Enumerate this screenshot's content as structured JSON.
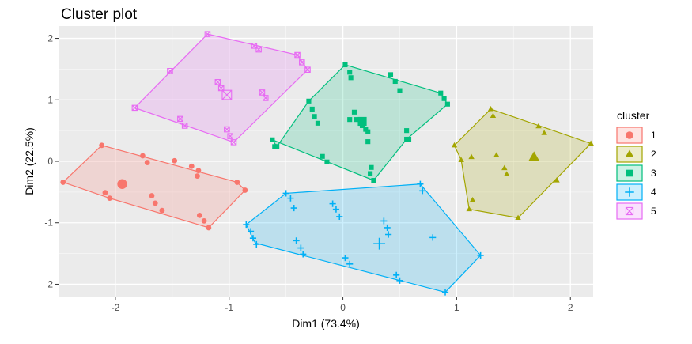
{
  "chart_data": {
    "type": "scatter",
    "title": "Cluster plot",
    "xlabel": "Dim1 (73.4%)",
    "ylabel": "Dim2 (22.5%)",
    "xlim": [
      -2.5,
      2.2
    ],
    "ylim": [
      -2.2,
      2.2
    ],
    "x_ticks": [
      -2,
      -1,
      0,
      1,
      2
    ],
    "x_tick_labels": [
      "-2",
      "-1",
      "0",
      "1",
      "2"
    ],
    "y_ticks": [
      -2,
      -1,
      0,
      1,
      2
    ],
    "y_tick_labels": [
      "-2",
      "-1",
      "0",
      "1",
      "2"
    ],
    "grid": true,
    "background": "#ebebeb",
    "legend": {
      "title": "cluster",
      "position": "right"
    },
    "series": [
      {
        "name": "1",
        "color": "#F8766D",
        "shape": "circle",
        "hull": [
          [
            -2.46,
            -0.34
          ],
          [
            -2.12,
            0.26
          ],
          [
            -0.93,
            -0.34
          ],
          [
            -0.86,
            -0.47
          ],
          [
            -1.18,
            -1.08
          ],
          [
            -2.05,
            -0.6
          ]
        ],
        "center": [
          -1.94,
          -0.37
        ],
        "points": [
          [
            -2.46,
            -0.34
          ],
          [
            -2.12,
            0.26
          ],
          [
            -1.76,
            0.09
          ],
          [
            -1.72,
            -0.02
          ],
          [
            -1.48,
            0.01
          ],
          [
            -1.33,
            -0.08
          ],
          [
            -1.27,
            -0.15
          ],
          [
            -1.28,
            -0.24
          ],
          [
            -0.93,
            -0.34
          ],
          [
            -0.86,
            -0.47
          ],
          [
            -1.18,
            -1.08
          ],
          [
            -1.22,
            -0.97
          ],
          [
            -1.26,
            -0.88
          ],
          [
            -1.59,
            -0.8
          ],
          [
            -1.65,
            -0.68
          ],
          [
            -1.68,
            -0.56
          ],
          [
            -2.05,
            -0.6
          ],
          [
            -2.09,
            -0.51
          ]
        ]
      },
      {
        "name": "2",
        "color": "#A3A500",
        "shape": "triangle",
        "hull": [
          [
            0.98,
            0.26
          ],
          [
            1.3,
            0.85
          ],
          [
            2.18,
            0.29
          ],
          [
            1.54,
            -0.92
          ],
          [
            1.11,
            -0.78
          ],
          [
            1.04,
            0.02
          ]
        ],
        "center": [
          1.68,
          0.07
        ],
        "points": [
          [
            0.98,
            0.26
          ],
          [
            1.04,
            0.02
          ],
          [
            1.3,
            0.85
          ],
          [
            1.32,
            0.74
          ],
          [
            1.72,
            0.57
          ],
          [
            1.77,
            0.46
          ],
          [
            2.18,
            0.29
          ],
          [
            1.88,
            -0.31
          ],
          [
            1.54,
            -0.92
          ],
          [
            1.11,
            -0.78
          ],
          [
            1.14,
            -0.63
          ],
          [
            1.42,
            -0.11
          ],
          [
            1.44,
            -0.21
          ],
          [
            1.35,
            0.1
          ],
          [
            1.13,
            0.07
          ]
        ]
      },
      {
        "name": "3",
        "color": "#00BF7D",
        "shape": "square",
        "hull": [
          [
            0.02,
            1.57
          ],
          [
            0.86,
            1.11
          ],
          [
            0.92,
            0.93
          ],
          [
            0.56,
            0.36
          ],
          [
            0.27,
            -0.31
          ],
          [
            -0.62,
            0.35
          ],
          [
            -0.58,
            0.24
          ],
          [
            -0.3,
            0.98
          ]
        ],
        "center": [
          0.17,
          0.65
        ],
        "points": [
          [
            0.02,
            1.57
          ],
          [
            0.06,
            1.45
          ],
          [
            0.07,
            1.36
          ],
          [
            0.42,
            1.41
          ],
          [
            0.46,
            1.3
          ],
          [
            0.5,
            1.15
          ],
          [
            0.86,
            1.11
          ],
          [
            0.89,
            1.02
          ],
          [
            0.92,
            0.93
          ],
          [
            0.56,
            0.5
          ],
          [
            0.58,
            0.36
          ],
          [
            0.56,
            0.36
          ],
          [
            0.27,
            -0.31
          ],
          [
            0.24,
            -0.2
          ],
          [
            0.25,
            -0.1
          ],
          [
            -0.62,
            0.35
          ],
          [
            -0.6,
            0.24
          ],
          [
            -0.58,
            0.24
          ],
          [
            -0.3,
            0.98
          ],
          [
            -0.27,
            0.85
          ],
          [
            -0.25,
            0.73
          ],
          [
            -0.22,
            0.62
          ],
          [
            -0.18,
            0.08
          ],
          [
            -0.14,
            -0.01
          ],
          [
            0.06,
            0.68
          ],
          [
            0.12,
            0.68
          ],
          [
            0.17,
            0.58
          ],
          [
            0.2,
            0.52
          ],
          [
            0.22,
            0.48
          ],
          [
            0.22,
            0.32
          ],
          [
            0.1,
            0.8
          ]
        ]
      },
      {
        "name": "4",
        "color": "#00B0F6",
        "shape": "cross",
        "hull": [
          [
            -0.5,
            -0.52
          ],
          [
            0.68,
            -0.37
          ],
          [
            1.21,
            -1.53
          ],
          [
            0.9,
            -2.13
          ],
          [
            -0.77,
            -1.33
          ],
          [
            -0.85,
            -1.03
          ]
        ],
        "center": [
          0.32,
          -1.34
        ],
        "points": [
          [
            -0.5,
            -0.52
          ],
          [
            -0.46,
            -0.6
          ],
          [
            -0.43,
            -0.76
          ],
          [
            -0.81,
            -1.14
          ],
          [
            -0.79,
            -1.25
          ],
          [
            -0.76,
            -1.35
          ],
          [
            -0.41,
            -1.29
          ],
          [
            -0.37,
            -1.41
          ],
          [
            -0.35,
            -1.51
          ],
          [
            -0.09,
            -0.69
          ],
          [
            -0.06,
            -0.78
          ],
          [
            -0.03,
            -0.9
          ],
          [
            0.02,
            -1.57
          ],
          [
            0.06,
            -1.67
          ],
          [
            0.36,
            -0.97
          ],
          [
            0.39,
            -1.08
          ],
          [
            0.4,
            -1.19
          ],
          [
            0.47,
            -1.85
          ],
          [
            0.5,
            -1.94
          ],
          [
            0.68,
            -0.37
          ],
          [
            0.7,
            -0.48
          ],
          [
            0.79,
            -1.24
          ],
          [
            1.21,
            -1.53
          ],
          [
            0.9,
            -2.13
          ],
          [
            -0.85,
            -1.03
          ]
        ]
      },
      {
        "name": "5",
        "color": "#E76BF3",
        "shape": "square-cross",
        "hull": [
          [
            -1.19,
            2.07
          ],
          [
            -0.4,
            1.73
          ],
          [
            -0.31,
            1.49
          ],
          [
            -0.96,
            0.31
          ],
          [
            -1.83,
            0.87
          ]
        ],
        "center": [
          -1.02,
          1.08
        ],
        "points": [
          [
            -1.19,
            2.07
          ],
          [
            -0.78,
            1.88
          ],
          [
            -0.74,
            1.82
          ],
          [
            -0.4,
            1.73
          ],
          [
            -0.36,
            1.61
          ],
          [
            -0.31,
            1.49
          ],
          [
            -1.52,
            1.47
          ],
          [
            -1.1,
            1.29
          ],
          [
            -1.07,
            1.19
          ],
          [
            -0.71,
            1.12
          ],
          [
            -0.68,
            1.03
          ],
          [
            -1.43,
            0.69
          ],
          [
            -1.39,
            0.58
          ],
          [
            -1.02,
            0.52
          ],
          [
            -0.99,
            0.41
          ],
          [
            -0.96,
            0.31
          ],
          [
            -1.83,
            0.87
          ]
        ]
      }
    ]
  }
}
